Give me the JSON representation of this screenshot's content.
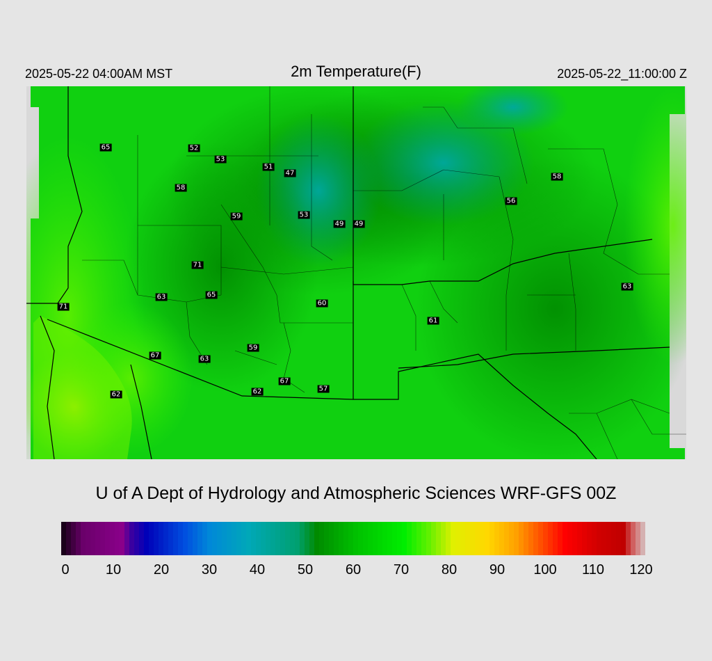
{
  "header": {
    "local_time": "2025-05-22 04:00AM MST",
    "title": "2m Temperature(F)",
    "utc_time": "2025-05-22_11:00:00 Z"
  },
  "credit": "U of A Dept of Hydrology and Atmospheric Sciences WRF-GFS 00Z",
  "stations": [
    {
      "label": "65"
    },
    {
      "label": "52"
    },
    {
      "label": "53"
    },
    {
      "label": "51"
    },
    {
      "label": "47"
    },
    {
      "label": "58"
    },
    {
      "label": "58"
    },
    {
      "label": "56"
    },
    {
      "label": "59"
    },
    {
      "label": "53"
    },
    {
      "label": "49"
    },
    {
      "label": "49"
    },
    {
      "label": "71"
    },
    {
      "label": "63"
    },
    {
      "label": "65"
    },
    {
      "label": "60"
    },
    {
      "label": "71"
    },
    {
      "label": "61"
    },
    {
      "label": "63"
    },
    {
      "label": "59"
    },
    {
      "label": "67"
    },
    {
      "label": "63"
    },
    {
      "label": "67"
    },
    {
      "label": "62"
    },
    {
      "label": "57"
    },
    {
      "label": "62"
    }
  ],
  "colorbar": {
    "min": 0,
    "max": 120,
    "tick_labels": [
      "0",
      "10",
      "20",
      "30",
      "40",
      "50",
      "60",
      "70",
      "80",
      "90",
      "100",
      "110",
      "120"
    ],
    "stops": [
      {
        "value": 0,
        "color": "#1a001a"
      },
      {
        "value": 4,
        "color": "#6a006a"
      },
      {
        "value": 12,
        "color": "#8a008a"
      },
      {
        "value": 14,
        "color": "#3a00a0"
      },
      {
        "value": 17,
        "color": "#0000b8"
      },
      {
        "value": 25,
        "color": "#0050e0"
      },
      {
        "value": 30,
        "color": "#0088d8"
      },
      {
        "value": 38,
        "color": "#00a8b8"
      },
      {
        "value": 48,
        "color": "#00a070"
      },
      {
        "value": 52,
        "color": "#008a00"
      },
      {
        "value": 60,
        "color": "#00c000"
      },
      {
        "value": 70,
        "color": "#00ee00"
      },
      {
        "value": 75,
        "color": "#60f000"
      },
      {
        "value": 80,
        "color": "#e0f000"
      },
      {
        "value": 87,
        "color": "#ffd800"
      },
      {
        "value": 93,
        "color": "#ffa000"
      },
      {
        "value": 98,
        "color": "#ff5000"
      },
      {
        "value": 103,
        "color": "#ff0000"
      },
      {
        "value": 110,
        "color": "#d00000"
      },
      {
        "value": 115,
        "color": "#c00000"
      },
      {
        "value": 117,
        "color": "#d06060"
      },
      {
        "value": 120,
        "color": "#d8d8d8"
      }
    ]
  }
}
